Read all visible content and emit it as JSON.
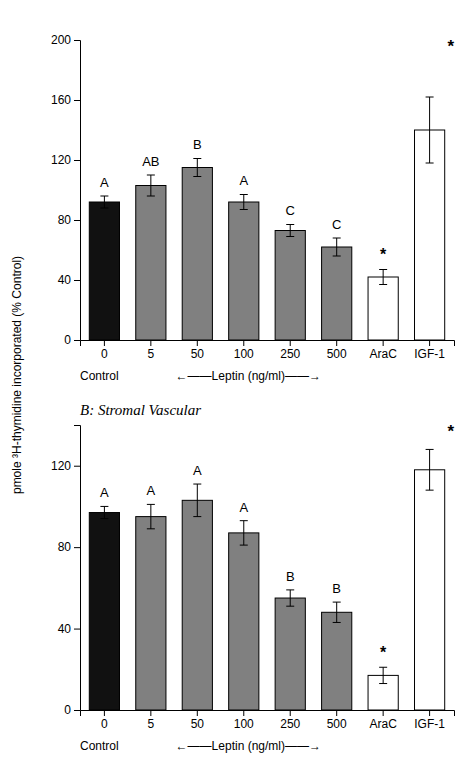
{
  "chart_data": [
    {
      "type": "bar",
      "ylabel": "pmole ³H-thymidine incorporated (% Control)",
      "categories": [
        "0",
        "5",
        "50",
        "100",
        "250",
        "500",
        "AraC",
        "IGF-1"
      ],
      "values": [
        92,
        103,
        115,
        92,
        73,
        62,
        42,
        140
      ],
      "errors": [
        4,
        7,
        6,
        5,
        4,
        6,
        5,
        22
      ],
      "colors": [
        "#111111",
        "#808080",
        "#808080",
        "#808080",
        "#808080",
        "#808080",
        "#ffffff",
        "#ffffff"
      ],
      "bar_labels": [
        "A",
        "AB",
        "B",
        "A",
        "C",
        "C",
        "*",
        null
      ],
      "annotations": [
        "Control",
        "←——Leptin (ng/ml)——→",
        "*"
      ],
      "ylim": [
        0,
        200
      ],
      "yticks": [
        0,
        40,
        80,
        120,
        160,
        200
      ],
      "grid": false
    },
    {
      "type": "bar",
      "title": "B: Stromal Vascular",
      "categories": [
        "0",
        "5",
        "50",
        "100",
        "250",
        "500",
        "AraC",
        "IGF-1"
      ],
      "values": [
        97,
        95,
        103,
        87,
        55,
        48,
        17,
        118
      ],
      "errors": [
        3,
        6,
        8,
        6,
        4,
        5,
        4,
        10
      ],
      "colors": [
        "#111111",
        "#808080",
        "#808080",
        "#808080",
        "#808080",
        "#808080",
        "#ffffff",
        "#ffffff"
      ],
      "bar_labels": [
        "A",
        "A",
        "A",
        "A",
        "B",
        "B",
        "*",
        null
      ],
      "annotations": [
        "Control",
        "←——Leptin (ng/ml)——→",
        "*"
      ],
      "ylim": [
        0,
        140
      ],
      "yticks": [
        0,
        40,
        80,
        120
      ],
      "grid": false
    }
  ]
}
